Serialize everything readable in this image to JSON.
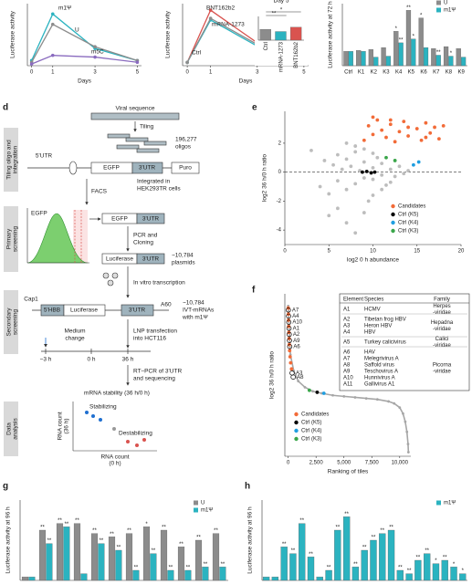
{
  "chart_data": [
    {
      "type": "line",
      "ylabel": "Luciferase activity",
      "xlabel": "Days",
      "x": [
        0,
        1,
        3,
        5
      ],
      "xlim": [
        -0.2,
        5.2
      ],
      "xticks": [
        0,
        1,
        3,
        5
      ],
      "ylim": [
        0,
        3.6
      ],
      "series": [
        {
          "name": "m1Ψ",
          "color": "#2bb3c0",
          "values": [
            0.3,
            3.0,
            1.0,
            0.3
          ]
        },
        {
          "name": "U",
          "color": "#8c8c8c",
          "values": [
            0.2,
            2.4,
            1.1,
            0.3
          ]
        },
        {
          "name": "m5C",
          "color": "#8a6bbf",
          "values": [
            0.1,
            0.6,
            0.5,
            0.2
          ]
        }
      ]
    },
    {
      "type": "line",
      "ylabel": "Luciferase activity",
      "xlabel": "Days",
      "x": [
        0,
        1,
        3,
        5
      ],
      "xlim": [
        -0.2,
        5.2
      ],
      "xticks": [
        0,
        1,
        3,
        5
      ],
      "ylim": [
        0,
        3.8
      ],
      "series": [
        {
          "name": "BNT162b2",
          "color": "#d9534f",
          "values": [
            0.2,
            3.4,
            1.4,
            0.4
          ]
        },
        {
          "name": "mRNA-1273",
          "color": "#2bb3c0",
          "values": [
            0.2,
            2.8,
            1.2,
            0.3
          ]
        },
        {
          "name": "Ctrl",
          "color": "#8c8c8c",
          "values": [
            0.2,
            2.9,
            1.3,
            0.3
          ]
        }
      ]
    },
    {
      "type": "bar",
      "title": "Day 5",
      "categories": [
        "Ctrl",
        "mRNA-1273",
        "BNT162b2"
      ],
      "values": [
        1.0,
        0.8,
        1.2
      ],
      "colors": [
        "#8c8c8c",
        "#2bb3c0",
        "#d9534f"
      ],
      "ylim": [
        0,
        2.2
      ],
      "significance": [
        "*",
        "**"
      ]
    },
    {
      "type": "bar",
      "ylabel": "Luciferase activity at 72 h",
      "categories": [
        "Ctrl",
        "K1",
        "K2",
        "K3",
        "K4",
        "K5",
        "K6",
        "K7",
        "K8",
        "K9"
      ],
      "ylim": [
        0,
        6.5
      ],
      "series": [
        {
          "name": "U",
          "color": "#8c8c8c",
          "values": [
            1.5,
            1.6,
            1.7,
            1.9,
            3.6,
            5.8,
            5.0,
            1.8,
            2.0,
            1.8
          ],
          "sig": [
            null,
            null,
            null,
            null,
            "*",
            "**",
            "*",
            null,
            null,
            null
          ]
        },
        {
          "name": "m1Ψ",
          "color": "#2bb3c0",
          "values": [
            1.5,
            1.5,
            0.9,
            1.0,
            2.4,
            2.8,
            1.9,
            1.1,
            1.0,
            0.9
          ],
          "sig": [
            null,
            null,
            null,
            null,
            "**",
            "*",
            null,
            "**",
            "*",
            null
          ]
        }
      ]
    },
    {
      "type": "scatter",
      "panel": "e",
      "xlabel": "log2 0 h abundance",
      "ylabel": "log2 36 h/0 h ratio",
      "xlim": [
        0,
        20
      ],
      "xticks": [
        0,
        5,
        10,
        15,
        20
      ],
      "ylim": [
        -5,
        4.2
      ],
      "yticks": [
        -4,
        -2,
        0,
        2
      ],
      "hline": 0,
      "series": [
        {
          "color": "#bdbdbd",
          "x": [
            3,
            4,
            4.5,
            5,
            5.5,
            6,
            6,
            6.5,
            7,
            7,
            7.5,
            8,
            8,
            8.5,
            9,
            9,
            9.5,
            10,
            10,
            10.5,
            11,
            11,
            11.5,
            12,
            12.5,
            13,
            13.5,
            14,
            5,
            6,
            7,
            8,
            9,
            10,
            11,
            12,
            7,
            8,
            9,
            10
          ],
          "y": [
            1.5,
            -1,
            0.8,
            -1.5,
            0.5,
            1.2,
            -0.6,
            0.2,
            -1.2,
            0.9,
            0.4,
            -0.8,
            1.4,
            0.1,
            -0.4,
            0.7,
            -2.0,
            0.3,
            -0.5,
            1.0,
            -0.2,
            0.6,
            -0.9,
            0.2,
            -0.3,
            0.4,
            -0.1,
            0.1,
            -3.0,
            -2.5,
            -3.5,
            -4.2,
            -2.8,
            -1.6,
            -1.2,
            -0.7,
            2.0,
            1.8,
            1.6,
            1.3
          ]
        },
        {
          "name": "Candidates",
          "color": "#f26b38",
          "x": [
            9,
            9.5,
            10,
            10.5,
            11,
            11.5,
            12,
            12.5,
            13,
            13.5,
            14,
            15,
            15.5,
            16,
            16.5,
            17,
            17.5,
            18,
            10,
            12,
            14,
            16
          ],
          "y": [
            2.2,
            3.2,
            2.6,
            3.6,
            2.9,
            2.4,
            3.3,
            2.1,
            2.8,
            3.5,
            2.5,
            3.0,
            2.2,
            3.4,
            2.7,
            3.1,
            2.3,
            3.2,
            3.8,
            3.6,
            3.1,
            2.4
          ]
        },
        {
          "name": "Ctrl (K5)",
          "color": "#000000",
          "x": [
            8.8,
            9.3,
            9.8,
            10.2
          ],
          "y": [
            0,
            0.05,
            -0.05,
            0
          ]
        },
        {
          "name": "Ctrl (K4)",
          "color": "#1f9ee0",
          "x": [
            14.6,
            15.2
          ],
          "y": [
            0.5,
            0.7
          ]
        },
        {
          "name": "Ctrl (K3)",
          "color": "#3aa64a",
          "x": [
            11.5,
            12.5
          ],
          "y": [
            1.0,
            0.8
          ]
        }
      ]
    },
    {
      "type": "scatter",
      "panel": "f",
      "xlabel": "Ranking of tiles",
      "ylabel": "log2 36 h/0 h ratio",
      "xlim": [
        -300,
        11000
      ],
      "xticks": [
        0,
        {
          "value": 2500,
          "label": "2,500"
        },
        {
          "value": 5000,
          "label": "5,000"
        },
        {
          "value": 7500,
          "label": "7,500"
        },
        {
          "value": 10000,
          "label": "10,000"
        }
      ],
      "ylim": [
        -3,
        5
      ],
      "series": [
        {
          "color": "#a6a6a6",
          "connect": true,
          "x": [
            0,
            200,
            500,
            900,
            1500,
            2200,
            3000,
            4000,
            5000,
            6000,
            7000,
            8000,
            9000,
            9500,
            10000,
            10300,
            10500,
            10650,
            10750,
            10784
          ],
          "y": [
            4.4,
            2.0,
            1.2,
            0.7,
            0.4,
            0.2,
            0.1,
            0,
            -0.05,
            -0.1,
            -0.15,
            -0.2,
            -0.3,
            -0.4,
            -0.6,
            -0.9,
            -1.3,
            -1.8,
            -2.4,
            -2.8
          ]
        },
        {
          "name": "Candidates",
          "color": "#f26b38",
          "x": [
            10,
            20,
            30,
            45,
            60,
            80,
            100,
            130,
            170,
            220,
            300
          ],
          "y": [
            4.3,
            4.0,
            3.7,
            3.4,
            3.1,
            2.8,
            2.5,
            2.2,
            1.9,
            1.6,
            1.3
          ]
        },
        {
          "name": "Ctrl (K5)",
          "color": "#000000",
          "x": [
            2600
          ],
          "y": [
            0.15
          ]
        },
        {
          "name": "Ctrl (K4)",
          "color": "#1f9ee0",
          "x": [
            3200
          ],
          "y": [
            0.1
          ]
        },
        {
          "name": "Ctrl (K3)",
          "color": "#3aa64a",
          "x": [
            1900
          ],
          "y": [
            0.25
          ]
        }
      ],
      "annotations": [
        {
          "text": "A7",
          "x": 15,
          "y": 4.2
        },
        {
          "text": "A4",
          "x": 35,
          "y": 3.9
        },
        {
          "text": "A10",
          "x": 55,
          "y": 3.6
        },
        {
          "text": "A1",
          "x": 75,
          "y": 3.3
        },
        {
          "text": "A2",
          "x": 95,
          "y": 3.0
        },
        {
          "text": "A9",
          "x": 115,
          "y": 2.7
        },
        {
          "text": "A6",
          "x": 140,
          "y": 2.4
        },
        {
          "text": "A3",
          "x": 350,
          "y": 1.1
        },
        {
          "text": "A8",
          "x": 450,
          "y": 0.9
        }
      ]
    },
    {
      "type": "bar",
      "panel": "g",
      "ylabel": "Luciferase activity at 96 h",
      "categories": [
        null,
        null,
        null,
        null,
        null,
        null,
        null,
        null,
        null,
        null,
        null,
        null
      ],
      "ylim": [
        0,
        24
      ],
      "series": [
        {
          "name": "U",
          "color": "#8c8c8c",
          "values": [
            1,
            15,
            17,
            17,
            14,
            13,
            14,
            16,
            15,
            10,
            12,
            14
          ],
          "sig": [
            null,
            "**",
            "**",
            "**",
            "**",
            "**",
            "**",
            "*",
            "**",
            "**",
            "**",
            "**"
          ]
        },
        {
          "name": "m1Ψ",
          "color": "#2bb3c0",
          "values": [
            1,
            11,
            16,
            2,
            11,
            9,
            3,
            8,
            3,
            3,
            4,
            4
          ],
          "sig": [
            null,
            "**",
            "**",
            null,
            "**",
            "**",
            "**",
            "**",
            "**",
            "**",
            "**",
            "**"
          ]
        }
      ]
    },
    {
      "type": "bar",
      "panel": "h",
      "ylabel": "Luciferase activity at 96 h",
      "categories": [
        null,
        null,
        null,
        null,
        null,
        null,
        null,
        null,
        null,
        null,
        null,
        null,
        null,
        null,
        null,
        null,
        null,
        null,
        null,
        null,
        null,
        null,
        null
      ],
      "ylim": [
        0,
        24
      ],
      "series": [
        {
          "name": "m1Ψ",
          "color": "#2bb3c0",
          "values": [
            1,
            1,
            10,
            8,
            17,
            7,
            1,
            3,
            15,
            19,
            4,
            9,
            12,
            14,
            15,
            3,
            2,
            6,
            8,
            5,
            6,
            4,
            2
          ],
          "sig": [
            null,
            null,
            "**",
            "**",
            "**",
            "**",
            null,
            "**",
            "**",
            "**",
            "**",
            "**",
            "**",
            "**",
            "**",
            "**",
            "**",
            "**",
            "**",
            "*",
            "**",
            "*",
            "*"
          ]
        }
      ]
    }
  ],
  "table_f": {
    "header": [
      "Element",
      "Species",
      "Family"
    ],
    "groups": [
      {
        "elements": [
          "A1"
        ],
        "species": [
          "HCMV"
        ],
        "family": [
          "Herpes",
          "-viridae"
        ]
      },
      {
        "elements": [
          "A2",
          "A3",
          "A4"
        ],
        "species": [
          "Tibetan frog HBV",
          "Heron HBV",
          "HBV"
        ],
        "family": [
          "Hepadna",
          "-viridae"
        ]
      },
      {
        "elements": [
          "A5"
        ],
        "species": [
          "Turkey calicivirus"
        ],
        "family": [
          "Calici",
          "-viridae"
        ]
      },
      {
        "elements": [
          "A6",
          "A7",
          "A8",
          "A9",
          "A10",
          "A11"
        ],
        "species": [
          "HAV",
          "Melegrivirus A",
          "Saffold virus",
          "Teschovirus A",
          "Hunnivirus A",
          "Gallivirus A1"
        ],
        "family": [
          "Picorna",
          "-viridae"
        ]
      }
    ]
  },
  "diagram_d": {
    "panel": "d",
    "stages": [
      [
        "Tiling oligo and",
        "integration"
      ],
      [
        "Primary",
        "screening"
      ],
      [
        "Secondary",
        "screening"
      ],
      [
        "Data",
        "analysis"
      ]
    ],
    "viral_sequence": "Viral sequence",
    "tiling": "Tiling",
    "oligos": [
      "196,277",
      "oligos"
    ],
    "construct": {
      "utr5": "5'UTR",
      "egfp": "EGFP",
      "utr3": "3'UTR",
      "puro": "Puro",
      "note": [
        "Integrated in",
        "HEK293TR cells"
      ]
    },
    "facs": "FACS",
    "histogram_label": "EGFP",
    "sorted": {
      "egfp": "EGFP",
      "utr3": "3'UTR"
    },
    "pcr": [
      "PCR and",
      "Cloning"
    ],
    "plasmid": {
      "luc": "Luciferase",
      "utr3": "3'UTR",
      "note": [
        "~10,784",
        "plasmids"
      ]
    },
    "ivt": "In vitro transcription",
    "mrna": {
      "cap": "Cap1",
      "hbb": "5'HBB",
      "luc": "Luciferase",
      "utr3": "3'UTR",
      "tail": "A60",
      "note": [
        "~10,784",
        "IVT-mRNAs",
        "with m1Ψ"
      ]
    },
    "timeline": {
      "medium": [
        "Medium",
        "change"
      ],
      "lnp": [
        "LNP transfection",
        "into HCT116"
      ],
      "t": [
        "−3 h",
        "0 h",
        "36 h"
      ]
    },
    "rtpcr": [
      "RT–PCR of 3'UTR",
      "and sequencing"
    ],
    "stability": "mRNA stability (36 h/0 h)",
    "plot": {
      "stab": "Stabilizing",
      "destab": "Destabilizing",
      "ylabel": [
        "RNA count",
        "(36 h)"
      ],
      "xlabel": [
        "RNA count",
        "(0 h)"
      ]
    }
  }
}
